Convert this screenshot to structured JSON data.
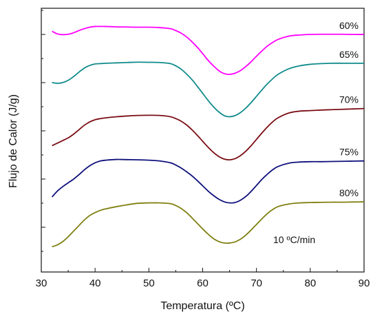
{
  "chart_data": {
    "type": "line",
    "xlabel": "Temperatura (ºC)",
    "ylabel": "Flujo de Calor (J/g)",
    "xlim": [
      30,
      90
    ],
    "xticks": [
      30,
      40,
      50,
      60,
      70,
      80,
      90
    ],
    "y_tick_labels": "none",
    "annotation": "10 ºC/min",
    "grid": false,
    "series": [
      {
        "name": "60%",
        "color": "#ff00ff",
        "x": [
          32,
          33,
          34,
          35,
          36,
          37,
          38,
          39,
          40,
          41,
          42,
          44,
          46,
          48,
          50,
          52,
          54,
          55,
          56,
          57,
          58,
          59,
          60,
          61,
          62,
          63,
          64,
          65,
          66,
          67,
          68,
          69,
          70,
          71,
          72,
          73,
          74,
          76,
          78,
          80,
          82,
          84,
          86,
          88,
          90
        ],
        "y": [
          60.8,
          60.1,
          59.9,
          60.0,
          60.4,
          61.0,
          61.5,
          61.9,
          62.1,
          62.1,
          62.1,
          62.0,
          61.95,
          61.9,
          61.9,
          61.8,
          61.5,
          61.0,
          60.3,
          59.3,
          58.0,
          56.5,
          54.8,
          53.0,
          51.5,
          50.2,
          49.4,
          49.2,
          49.5,
          50.2,
          51.3,
          52.6,
          54.1,
          55.5,
          56.8,
          57.8,
          58.6,
          59.5,
          59.8,
          59.95,
          60.0,
          60.0,
          60.0,
          59.95,
          59.95
        ]
      },
      {
        "name": "65%",
        "color": "#0f8a8a",
        "x": [
          32,
          33,
          34,
          35,
          36,
          37,
          38,
          39,
          40,
          41,
          42,
          44,
          46,
          48,
          50,
          52,
          54,
          55,
          56,
          57,
          58,
          59,
          60,
          61,
          62,
          63,
          64,
          65,
          66,
          67,
          68,
          69,
          70,
          71,
          72,
          73,
          74,
          76,
          78,
          80,
          82,
          84,
          86,
          88,
          90
        ],
        "y": [
          47.0,
          46.8,
          47.0,
          47.6,
          48.6,
          49.8,
          50.9,
          51.6,
          52.0,
          52.1,
          52.2,
          52.3,
          52.4,
          52.5,
          52.45,
          52.4,
          52.1,
          51.5,
          50.6,
          49.3,
          47.8,
          46.0,
          44.1,
          42.2,
          40.5,
          39.1,
          38.1,
          37.8,
          38.1,
          38.9,
          40.1,
          41.6,
          43.3,
          45.0,
          46.6,
          48.0,
          49.2,
          50.7,
          51.5,
          51.9,
          52.1,
          52.2,
          52.2,
          52.2,
          52.2
        ]
      },
      {
        "name": "70%",
        "color": "#7a0c12",
        "x": [
          32,
          33,
          34,
          35,
          36,
          37,
          38,
          39,
          40,
          41,
          42,
          44,
          46,
          48,
          50,
          52,
          54,
          55,
          56,
          57,
          58,
          59,
          60,
          61,
          62,
          63,
          64,
          65,
          66,
          67,
          68,
          69,
          70,
          71,
          72,
          73,
          74,
          76,
          78,
          80,
          82,
          84,
          86,
          88,
          90
        ],
        "y": [
          30.0,
          30.7,
          31.4,
          32.1,
          33.1,
          34.3,
          35.5,
          36.4,
          37.0,
          37.3,
          37.5,
          37.8,
          38.0,
          38.15,
          38.2,
          38.15,
          37.8,
          37.3,
          36.6,
          35.6,
          34.3,
          32.8,
          31.2,
          29.6,
          28.2,
          27.1,
          26.4,
          26.2,
          26.5,
          27.3,
          28.5,
          30.0,
          31.7,
          33.4,
          35.0,
          36.4,
          37.5,
          38.8,
          39.3,
          39.45,
          39.6,
          39.7,
          39.8,
          39.9,
          40.0
        ]
      },
      {
        "name": "75%",
        "color": "#0d0f7a",
        "x": [
          32,
          33,
          34,
          35,
          36,
          37,
          38,
          39,
          40,
          41,
          42,
          44,
          46,
          48,
          50,
          52,
          54,
          55,
          56,
          57,
          58,
          59,
          60,
          61,
          62,
          63,
          64,
          65,
          66,
          67,
          68,
          69,
          70,
          71,
          72,
          73,
          74,
          76,
          78,
          80,
          82,
          84,
          86,
          88,
          90
        ],
        "y": [
          16.2,
          17.8,
          19.0,
          20.0,
          21.0,
          22.2,
          23.5,
          24.6,
          25.4,
          25.9,
          26.1,
          26.3,
          26.25,
          26.2,
          26.1,
          25.9,
          25.4,
          24.8,
          24.0,
          23.0,
          21.9,
          20.6,
          19.2,
          17.8,
          16.6,
          15.6,
          14.9,
          14.6,
          14.7,
          15.3,
          16.3,
          17.7,
          19.3,
          20.9,
          22.3,
          23.5,
          24.4,
          25.3,
          25.6,
          25.7,
          25.7,
          25.75,
          25.8,
          25.85,
          25.9
        ]
      },
      {
        "name": "80%",
        "color": "#7f7f10",
        "x": [
          32,
          33,
          34,
          35,
          36,
          37,
          38,
          39,
          40,
          41,
          42,
          44,
          46,
          48,
          50,
          52,
          54,
          55,
          56,
          57,
          58,
          59,
          60,
          61,
          62,
          63,
          64,
          65,
          66,
          67,
          68,
          69,
          70,
          71,
          72,
          73,
          74,
          76,
          78,
          80,
          82,
          84,
          86,
          88,
          90
        ],
        "y": [
          2.8,
          3.3,
          4.2,
          5.5,
          7.0,
          8.5,
          10.0,
          11.2,
          12.0,
          12.6,
          13.0,
          13.6,
          14.1,
          14.5,
          14.6,
          14.6,
          14.4,
          13.9,
          13.1,
          12.0,
          10.6,
          9.1,
          7.6,
          6.2,
          5.0,
          4.2,
          3.8,
          3.8,
          4.1,
          4.8,
          5.9,
          7.3,
          8.8,
          10.3,
          11.7,
          12.8,
          13.6,
          14.3,
          14.6,
          14.7,
          14.75,
          14.8,
          14.8,
          14.85,
          14.9
        ]
      }
    ]
  }
}
